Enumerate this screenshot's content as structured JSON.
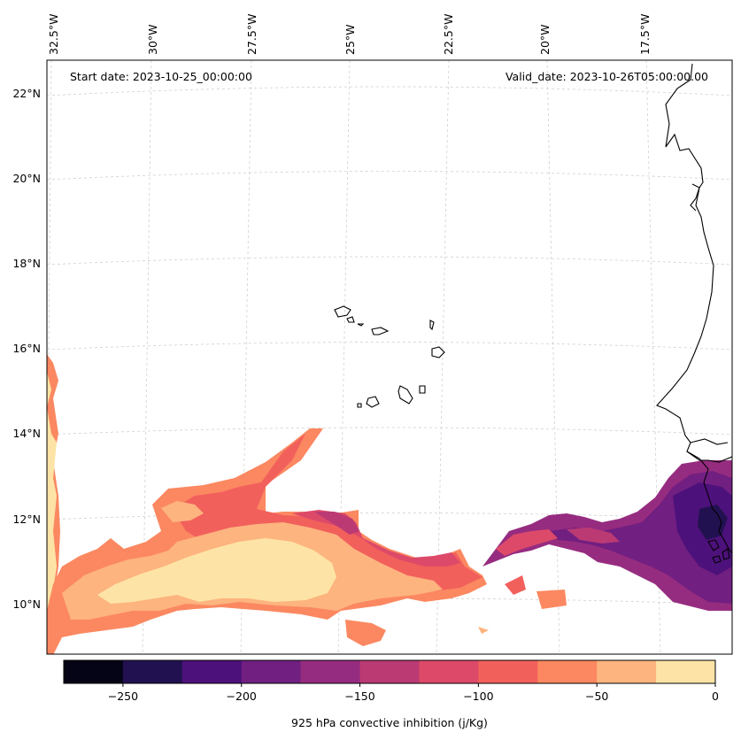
{
  "map": {
    "start_date": "Start date: 2023-10-25_00:00:00",
    "valid_date": "Valid_date: 2023-10-26T05:00:00.00",
    "lon_labels": [
      "32.5°W",
      "30°W",
      "27.5°W",
      "25°W",
      "22.5°W",
      "20°W",
      "17.5°W"
    ],
    "lat_labels": [
      "22°N",
      "20°N",
      "18°N",
      "16°N",
      "14°N",
      "12°N",
      "10°N"
    ],
    "gridlines": true
  },
  "colorbar": {
    "label": "925 hPa convective inhibition (j/Kg)",
    "tick_labels": [
      "−250",
      "−200",
      "−150",
      "−100",
      "−50",
      "0"
    ],
    "range": [
      -275,
      0
    ],
    "bin_colors": [
      "#050416",
      "#221150",
      "#4d117b",
      "#711f81",
      "#962c80",
      "#bb3a74",
      "#dd4a69",
      "#f2605c",
      "#fb8861",
      "#fdb47f",
      "#fde4a6"
    ],
    "levels": [
      -275,
      -250,
      -225,
      -200,
      -175,
      -150,
      -125,
      -100,
      -75,
      -50,
      -25,
      0
    ]
  }
}
